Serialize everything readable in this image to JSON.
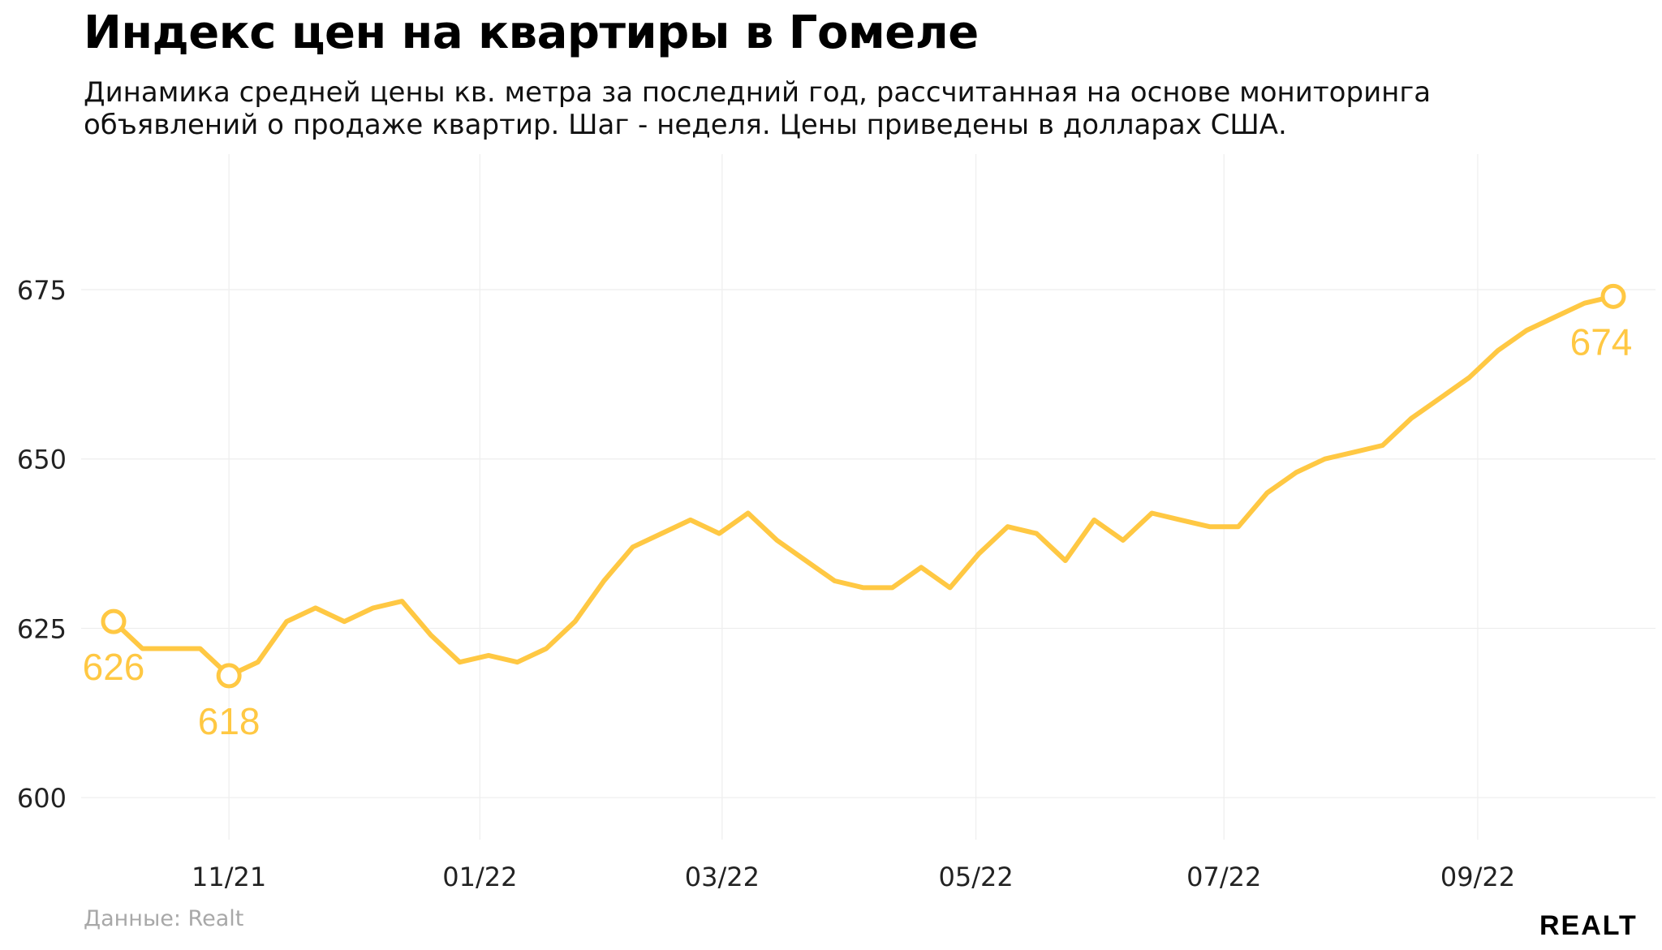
{
  "title": "Индекс цен на квартиры в Гомеле",
  "subtitle": "Динамика средней цены кв. метра за последний год, рассчитанная на основе мониторинга объявлений о продаже квартир. Шаг - неделя. Цены приведены в долларах США.",
  "source": "Данные: Realt",
  "logo": "REALT",
  "colors": {
    "line": "#FFC843",
    "grid": "#EEEEEE",
    "axis_text": "#222222"
  },
  "chart_data": {
    "type": "line",
    "xlabel": "",
    "ylabel": "",
    "ylim": [
      592,
      695
    ],
    "yticks": [
      600,
      625,
      650,
      675
    ],
    "xticks": [
      {
        "label": "11/21",
        "index": 4
      },
      {
        "label": "01/22",
        "index": 12.7
      },
      {
        "label": "03/22",
        "index": 21.1
      },
      {
        "label": "05/22",
        "index": 29.9
      },
      {
        "label": "07/22",
        "index": 38.5
      },
      {
        "label": "09/22",
        "index": 47.3
      }
    ],
    "grid": true,
    "series": [
      {
        "values": [
          626,
          622,
          622,
          622,
          618,
          620,
          626,
          628,
          626,
          628,
          629,
          624,
          620,
          621,
          620,
          622,
          626,
          632,
          637,
          639,
          641,
          639,
          642,
          638,
          635,
          632,
          631,
          631,
          634,
          631,
          636,
          640,
          639,
          635,
          641,
          638,
          642,
          641,
          640,
          640,
          645,
          648,
          650,
          651,
          652,
          656,
          659,
          662,
          666,
          669,
          671,
          673,
          674
        ]
      }
    ],
    "annotations": [
      {
        "index": 0,
        "value": 626,
        "text": "626",
        "position": "below"
      },
      {
        "index": 4,
        "value": 618,
        "text": "618",
        "position": "below"
      },
      {
        "index": 52,
        "value": 674,
        "text": "674",
        "position": "below"
      }
    ]
  }
}
